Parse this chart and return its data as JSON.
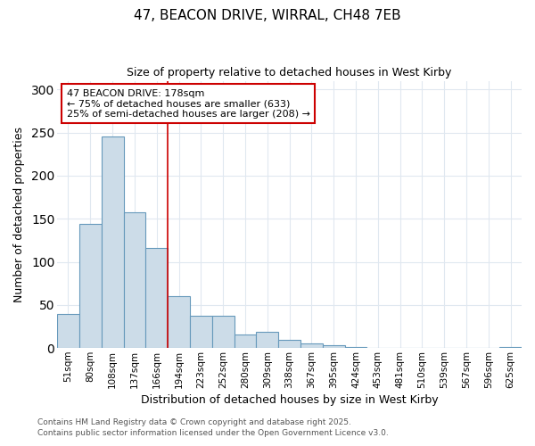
{
  "title1": "47, BEACON DRIVE, WIRRAL, CH48 7EB",
  "title2": "Size of property relative to detached houses in West Kirby",
  "xlabel": "Distribution of detached houses by size in West Kirby",
  "ylabel": "Number of detached properties",
  "categories": [
    "51sqm",
    "80sqm",
    "108sqm",
    "137sqm",
    "166sqm",
    "194sqm",
    "223sqm",
    "252sqm",
    "280sqm",
    "309sqm",
    "338sqm",
    "367sqm",
    "395sqm",
    "424sqm",
    "453sqm",
    "481sqm",
    "510sqm",
    "539sqm",
    "567sqm",
    "596sqm",
    "625sqm"
  ],
  "values": [
    39,
    144,
    245,
    157,
    116,
    60,
    37,
    37,
    16,
    19,
    9,
    5,
    3,
    1,
    0,
    0,
    0,
    0,
    0,
    0,
    1
  ],
  "bar_color": "#ccdce8",
  "bar_edge_color": "#6699bb",
  "vline_color": "#cc0000",
  "vline_x": 4.5,
  "annotation_text": "47 BEACON DRIVE: 178sqm\n← 75% of detached houses are smaller (633)\n25% of semi-detached houses are larger (208) →",
  "annotation_box_color": "white",
  "annotation_box_edge": "#cc0000",
  "ylim": [
    0,
    310
  ],
  "yticks": [
    0,
    50,
    100,
    150,
    200,
    250,
    300
  ],
  "bg_color": "#ffffff",
  "grid_color": "#e0e8f0",
  "footer1": "Contains HM Land Registry data © Crown copyright and database right 2025.",
  "footer2": "Contains public sector information licensed under the Open Government Licence v3.0."
}
